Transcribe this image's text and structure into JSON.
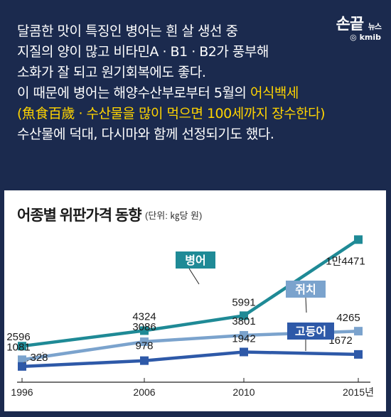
{
  "brand": {
    "name": "손끝",
    "tag": "뉴스",
    "sub": "◎ kmib"
  },
  "intro": {
    "lines": [
      "달콤한 맛이 특징인 병어는 흰 살 생선 중",
      "지질의 양이 많고 비타민A · B1 · B2가 풍부해",
      "소화가 잘 되고 원기회복에도 좋다.",
      "이 때문에 병어는 해양수산부로부터 5월의 ",
      "(魚食百歲 · 수산물을 많이 먹으면 100세까지 장수한다)",
      "수산물에 덕대, 다시마와 함께 선정되기도 했다."
    ],
    "highlight": "어식백세"
  },
  "chart_data": {
    "type": "line",
    "title": "어종별 위판가격 동향",
    "subtitle": "(단위: ㎏당 원)",
    "categories": [
      "1996",
      "2006",
      "2010",
      "2015년"
    ],
    "ylim": [
      0,
      16000
    ],
    "grid": false,
    "series": [
      {
        "name": "병어",
        "values": [
          2596,
          4324,
          5991,
          14471
        ],
        "labels": [
          "2596",
          "4324",
          "5991",
          "1만4471"
        ],
        "color": "#1f8a96"
      },
      {
        "name": "쥐치",
        "values": [
          1081,
          3086,
          3801,
          4265
        ],
        "labels": [
          "1081",
          "3086",
          "3801",
          "4265"
        ],
        "color": "#7ba3cd"
      },
      {
        "name": "고등어",
        "values": [
          328,
          978,
          1942,
          1672
        ],
        "labels": [
          "328",
          "978",
          "1942",
          "1672"
        ],
        "color": "#2e59a8"
      }
    ]
  }
}
